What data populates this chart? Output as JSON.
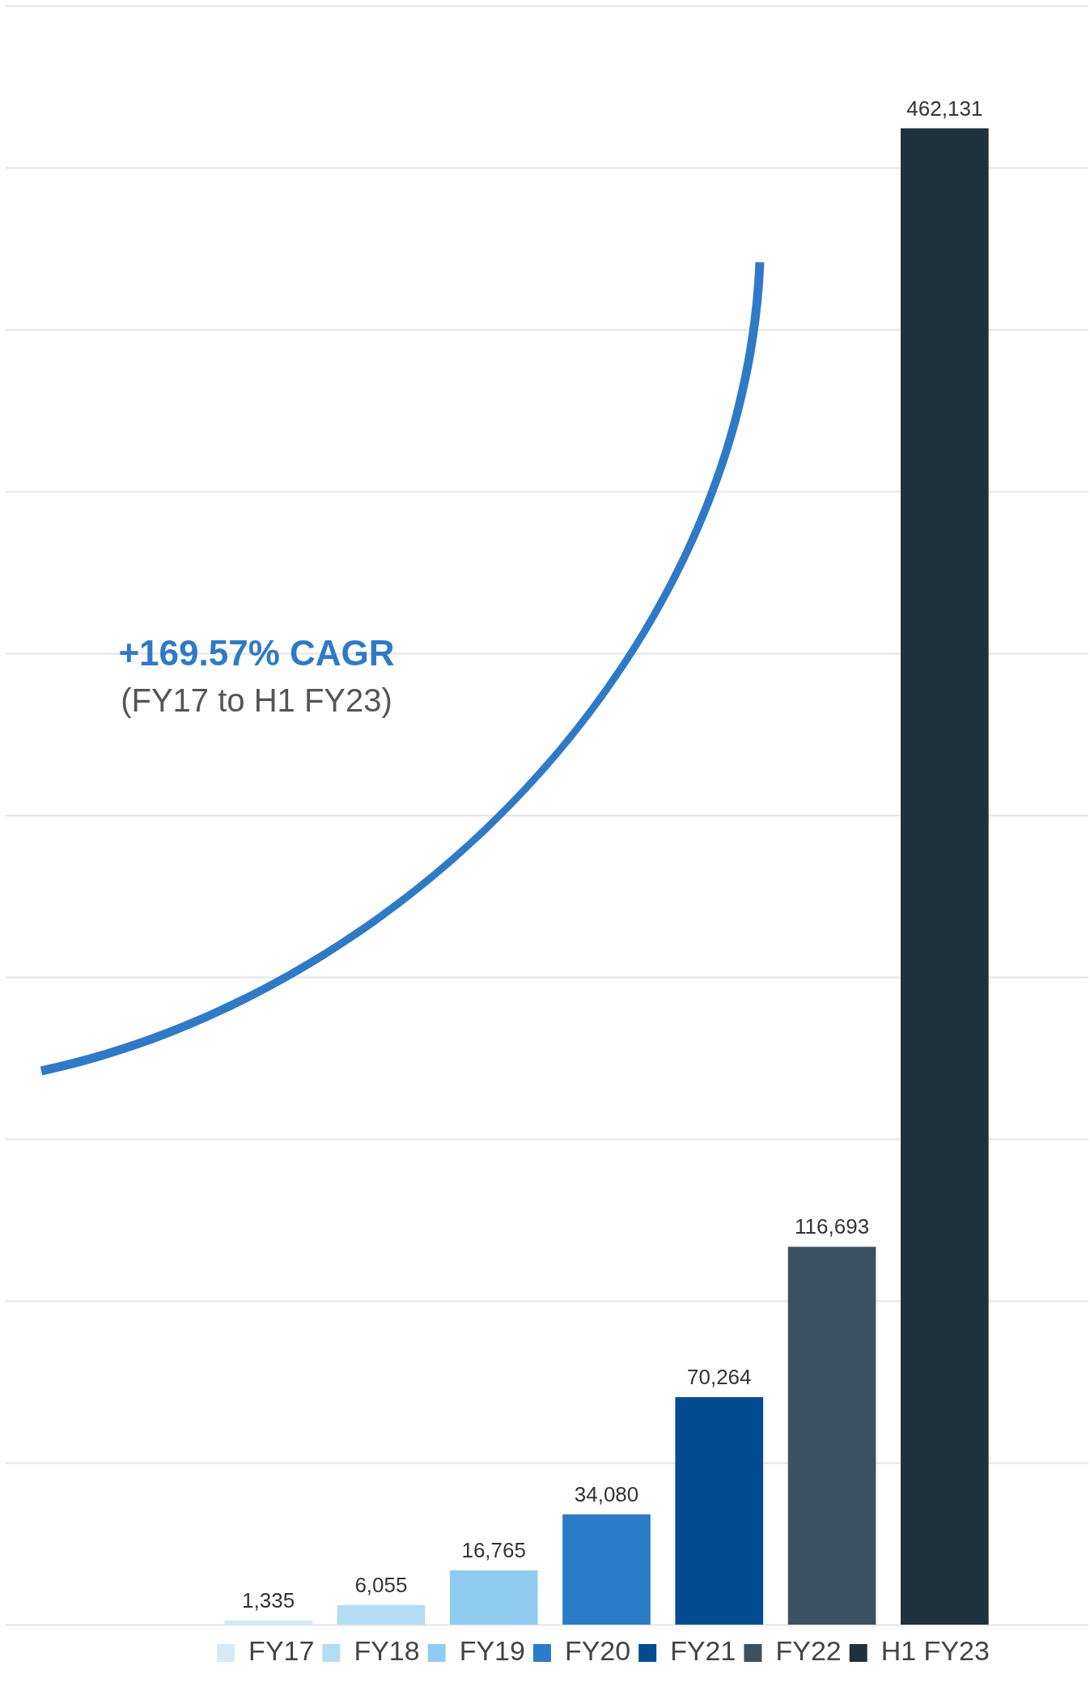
{
  "chart_data": {
    "type": "bar",
    "stacked": true,
    "categories": [
      null,
      null,
      null,
      null,
      null,
      null,
      null
    ],
    "series": [
      {
        "name": "FY17",
        "color": "#d6e9f7",
        "values": [
          1335,
          null,
          null,
          null,
          null,
          null,
          null
        ],
        "value_labels": [
          "1,335",
          null,
          null,
          null,
          null,
          null,
          null
        ]
      },
      {
        "name": "FY18",
        "color": "#b3dcf5",
        "values": [
          null,
          6055,
          null,
          null,
          null,
          null,
          null
        ],
        "value_labels": [
          null,
          "6,055",
          null,
          null,
          null,
          null,
          null
        ]
      },
      {
        "name": "FY19",
        "color": "#8fccf0",
        "values": [
          null,
          null,
          16765,
          null,
          null,
          null,
          null
        ],
        "value_labels": [
          null,
          null,
          "16,765",
          null,
          null,
          null,
          null
        ]
      },
      {
        "name": "FY20",
        "color": "#2b7cc8",
        "values": [
          null,
          null,
          null,
          34080,
          null,
          null,
          null
        ],
        "value_labels": [
          null,
          null,
          null,
          "34,080",
          null,
          null,
          null
        ]
      },
      {
        "name": "FY21",
        "color": "#034c8f",
        "values": [
          null,
          null,
          null,
          null,
          70264,
          null,
          null
        ],
        "value_labels": [
          null,
          null,
          null,
          null,
          "70,264",
          null,
          null
        ]
      },
      {
        "name": "FY22",
        "color": "#3b5161",
        "values": [
          null,
          null,
          null,
          null,
          null,
          116693,
          null
        ],
        "value_labels": [
          null,
          null,
          null,
          null,
          null,
          "116,693",
          null
        ]
      },
      {
        "name": "H1 FY23",
        "color": "#20313e",
        "values": [
          null,
          null,
          null,
          null,
          null,
          null,
          462131
        ],
        "value_labels": [
          null,
          null,
          null,
          null,
          null,
          null,
          "462,131"
        ]
      }
    ],
    "grid": true,
    "tick_labels": false,
    "legend": "bottom",
    "annotations": [
      "+169.57% CAGR",
      "(FY17 to H1 FY23)"
    ]
  }
}
